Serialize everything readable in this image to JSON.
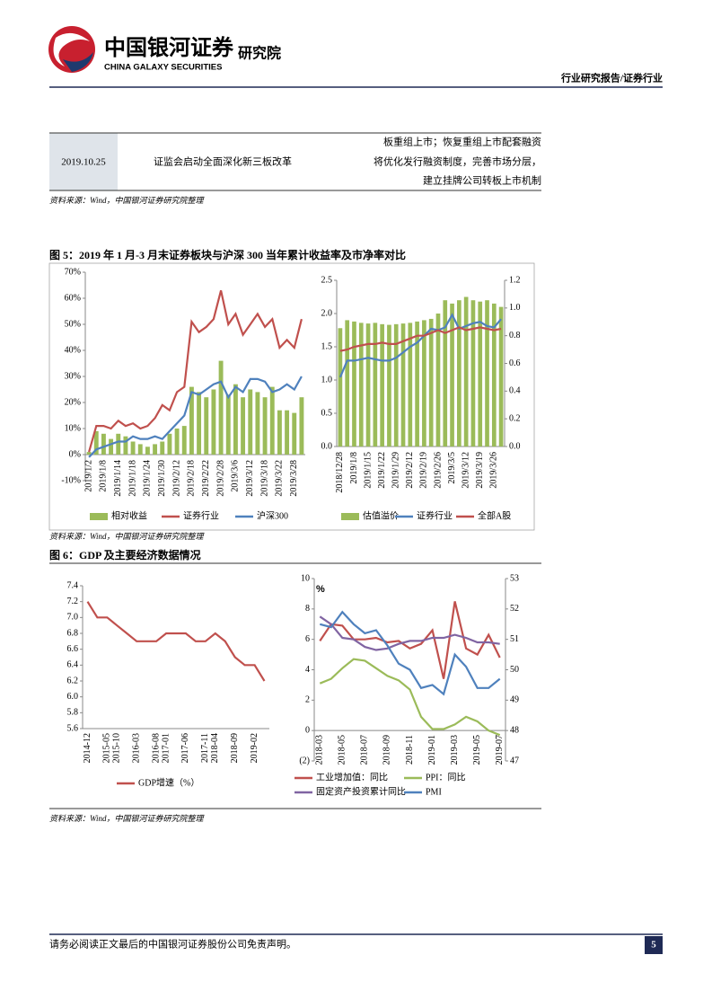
{
  "header": {
    "logo_cn": "中国银河证券",
    "logo_en": "CHINA GALAXY SECURITIES",
    "institute": "研究院",
    "category": "行业研究报告/证券行业"
  },
  "table": {
    "rows": [
      [
        "2019.10.25",
        "证监会启动全面深化新三板改革",
        [
          "板重组上市；恢复重组上市配套融资",
          "将优化发行融资制度，完善市场分层，",
          "建立挂牌公司转板上市机制"
        ]
      ]
    ],
    "source": "资料来源：Wind，中国银河证券研究院整理"
  },
  "figures": [
    {
      "title": "图 5：2019 年 1 月-3 月末证券板块与沪深 300 当年累计收益率及市净率对比",
      "source": "资料来源：Wind，中国银河证券研究院整理"
    },
    {
      "title": "图 6：GDP 及主要经济数据情况",
      "source": "资料来源：Wind，中国银河证券研究院整理"
    }
  ],
  "chart_data": [
    {
      "type": "combo",
      "categories": [
        "2019/1/2",
        null,
        "2019/1/8",
        null,
        "2019/1/14",
        null,
        "2019/1/18",
        null,
        "2019/1/24",
        null,
        "2019/1/30",
        null,
        "2019/2/12",
        null,
        "2019/2/18",
        null,
        "2019/2/22",
        null,
        "2019/2/28",
        null,
        "2019/3/6",
        null,
        "2019/3/12",
        null,
        "2019/3/18",
        null,
        "2019/3/22",
        null,
        "2019/3/28",
        null
      ],
      "ylim": [
        -10,
        70
      ],
      "yticks": [
        {
          "value": -10,
          "label": "-10%"
        },
        {
          "value": 0,
          "label": "0%"
        },
        {
          "value": 10,
          "label": "10%"
        },
        {
          "value": 20,
          "label": "20%"
        },
        {
          "value": 30,
          "label": "30%"
        },
        {
          "value": 40,
          "label": "40%"
        },
        {
          "value": 50,
          "label": "50%"
        },
        {
          "value": 60,
          "label": "60%"
        },
        {
          "value": 70,
          "label": "70%"
        }
      ],
      "series": [
        {
          "name": "相对收益",
          "type": "bar",
          "color": "#9bbb59",
          "values": [
            1,
            9,
            8,
            6,
            8,
            7,
            5,
            4,
            3,
            4,
            5,
            8,
            10,
            11,
            26,
            24,
            22,
            25,
            36,
            23,
            27,
            22,
            25,
            24,
            22,
            26,
            17,
            17,
            16,
            22
          ]
        },
        {
          "name": "证券行业",
          "type": "line",
          "color": "#c0504d",
          "values": [
            1,
            11,
            11,
            10,
            13,
            11,
            12,
            10,
            11,
            14,
            19,
            17,
            24,
            26,
            51,
            47,
            49,
            52,
            63,
            50,
            54,
            46,
            50,
            54,
            49,
            52,
            41,
            44,
            41,
            52
          ]
        },
        {
          "name": "沪深300",
          "type": "line",
          "color": "#4f81bd",
          "values": [
            -1,
            2,
            3,
            4,
            5,
            5,
            7,
            6,
            6,
            7,
            6,
            9,
            12,
            15,
            24,
            23,
            25,
            27,
            28,
            22,
            26,
            24,
            29,
            29,
            28,
            24,
            25,
            27,
            25,
            30
          ]
        }
      ]
    },
    {
      "type": "combo",
      "categories": [
        "2018/12/28",
        null,
        "2019/1/8",
        null,
        "2019/1/15",
        null,
        "2019/1/22",
        null,
        "2019/1/29",
        null,
        "2019/2/12",
        null,
        "2019/2/19",
        null,
        "2019/2/26",
        null,
        "2019/3/5",
        null,
        "2019/3/12",
        null,
        "2019/3/19",
        null,
        "2019/3/26",
        null
      ],
      "ylim": [
        0,
        2.5
      ],
      "yticks": [
        {
          "value": 0,
          "label": "0.0"
        },
        0.5,
        {
          "value": 1,
          "label": "1.0"
        },
        1.5,
        {
          "value": 2,
          "label": "2.0"
        },
        2.5
      ],
      "y2lim": [
        0,
        1.2
      ],
      "y2ticks": [
        {
          "value": 0,
          "label": "0.0"
        },
        0.2,
        0.4,
        0.6,
        0.8,
        {
          "value": 1,
          "label": "1.0"
        },
        1.2
      ],
      "series": [
        {
          "name": "估值溢价",
          "type": "bar",
          "color": "#9bbb59",
          "values": [
            1.78,
            1.9,
            1.88,
            1.86,
            1.85,
            1.86,
            1.84,
            1.83,
            1.84,
            1.85,
            1.86,
            1.88,
            1.9,
            1.92,
            2.0,
            2.2,
            2.15,
            2.2,
            2.25,
            2.2,
            2.18,
            2.2,
            2.15,
            2.1
          ]
        },
        {
          "name": "证券行业",
          "type": "line",
          "axis": "y2",
          "color": "#4f81bd",
          "values": [
            0.5,
            0.62,
            0.62,
            0.63,
            0.64,
            0.63,
            0.62,
            0.62,
            0.64,
            0.68,
            0.72,
            0.75,
            0.8,
            0.85,
            0.84,
            0.86,
            0.95,
            0.85,
            0.87,
            0.89,
            0.9,
            0.87,
            0.86,
            0.92
          ]
        },
        {
          "name": "全部A股",
          "type": "line",
          "axis": "y2",
          "color": "#c0504d",
          "values": [
            0.69,
            0.7,
            0.72,
            0.73,
            0.74,
            0.74,
            0.75,
            0.74,
            0.74,
            0.76,
            0.78,
            0.8,
            0.8,
            0.82,
            0.84,
            0.82,
            0.84,
            0.86,
            0.84,
            0.85,
            0.86,
            0.85,
            0.84,
            0.85
          ]
        }
      ]
    },
    {
      "type": "line",
      "categories": [
        "2014-12",
        null,
        "2015-05",
        "2015-10",
        null,
        "2016-03",
        null,
        "2016-08",
        "2017-01",
        null,
        "2017-06",
        null,
        "2017-11",
        "2018-04",
        null,
        "2018-09",
        null,
        "2019-02",
        null
      ],
      "ylim": [
        5.6,
        7.4
      ],
      "yticks": [
        5.6,
        5.8,
        {
          "value": 6,
          "label": "6.0"
        },
        6.2,
        6.4,
        6.6,
        6.8,
        {
          "value": 7,
          "label": "7.0"
        },
        7.2,
        7.4
      ],
      "series": [
        {
          "name": "GDP增速（%）",
          "type": "line",
          "color": "#c0504d",
          "values": [
            7.2,
            7.0,
            7.0,
            6.9,
            6.8,
            6.7,
            6.7,
            6.7,
            6.8,
            6.8,
            6.8,
            6.7,
            6.7,
            6.8,
            6.7,
            6.5,
            6.4,
            6.4,
            6.2
          ]
        }
      ]
    },
    {
      "type": "line",
      "annotation": "%",
      "categories": [
        "2018-03",
        null,
        "2018-05",
        null,
        "2018-07",
        null,
        "2018-09",
        null,
        "2018-11",
        null,
        "2019-01",
        null,
        "2019-03",
        null,
        "2019-05",
        null,
        "2019-07"
      ],
      "ylim": [
        -2,
        10
      ],
      "yticks": [
        {
          "value": -2,
          "label": "(2)"
        },
        0,
        2,
        4,
        6,
        8,
        10
      ],
      "y2lim": [
        47,
        53
      ],
      "y2ticks": [
        47,
        48,
        49,
        50,
        51,
        52,
        53
      ],
      "series": [
        {
          "name": "工业增加值：同比",
          "type": "line",
          "color": "#c0504d",
          "values": [
            5.9,
            7.0,
            6.9,
            6.0,
            6.0,
            6.1,
            5.8,
            5.9,
            5.4,
            5.7,
            6.6,
            3.4,
            8.5,
            5.4,
            5.0,
            6.3,
            4.8
          ]
        },
        {
          "name": "PPI：同比",
          "type": "line",
          "color": "#9bbb59",
          "values": [
            3.1,
            3.4,
            4.1,
            4.7,
            4.6,
            4.1,
            3.6,
            3.3,
            2.7,
            0.9,
            0.1,
            0.1,
            0.4,
            0.9,
            0.6,
            0.0,
            -0.3
          ]
        },
        {
          "name": "固定资产投资累计同比",
          "type": "line",
          "color": "#8064a2",
          "values": [
            7.5,
            7.0,
            6.1,
            6.0,
            5.5,
            5.3,
            5.4,
            5.7,
            5.9,
            5.9,
            6.1,
            6.1,
            6.3,
            6.1,
            5.8,
            5.8,
            5.7
          ]
        },
        {
          "name": "PMI",
          "type": "line",
          "axis": "y2",
          "color": "#4f81bd",
          "values": [
            51.5,
            51.4,
            51.9,
            51.5,
            51.2,
            51.3,
            50.8,
            50.2,
            50.0,
            49.4,
            49.5,
            49.2,
            50.5,
            50.1,
            49.4,
            49.4,
            49.7
          ]
        }
      ]
    }
  ],
  "footer": {
    "disclaimer": "请务必阅读正文最后的中国银河证券股份公司免责声明。",
    "page": "5"
  }
}
